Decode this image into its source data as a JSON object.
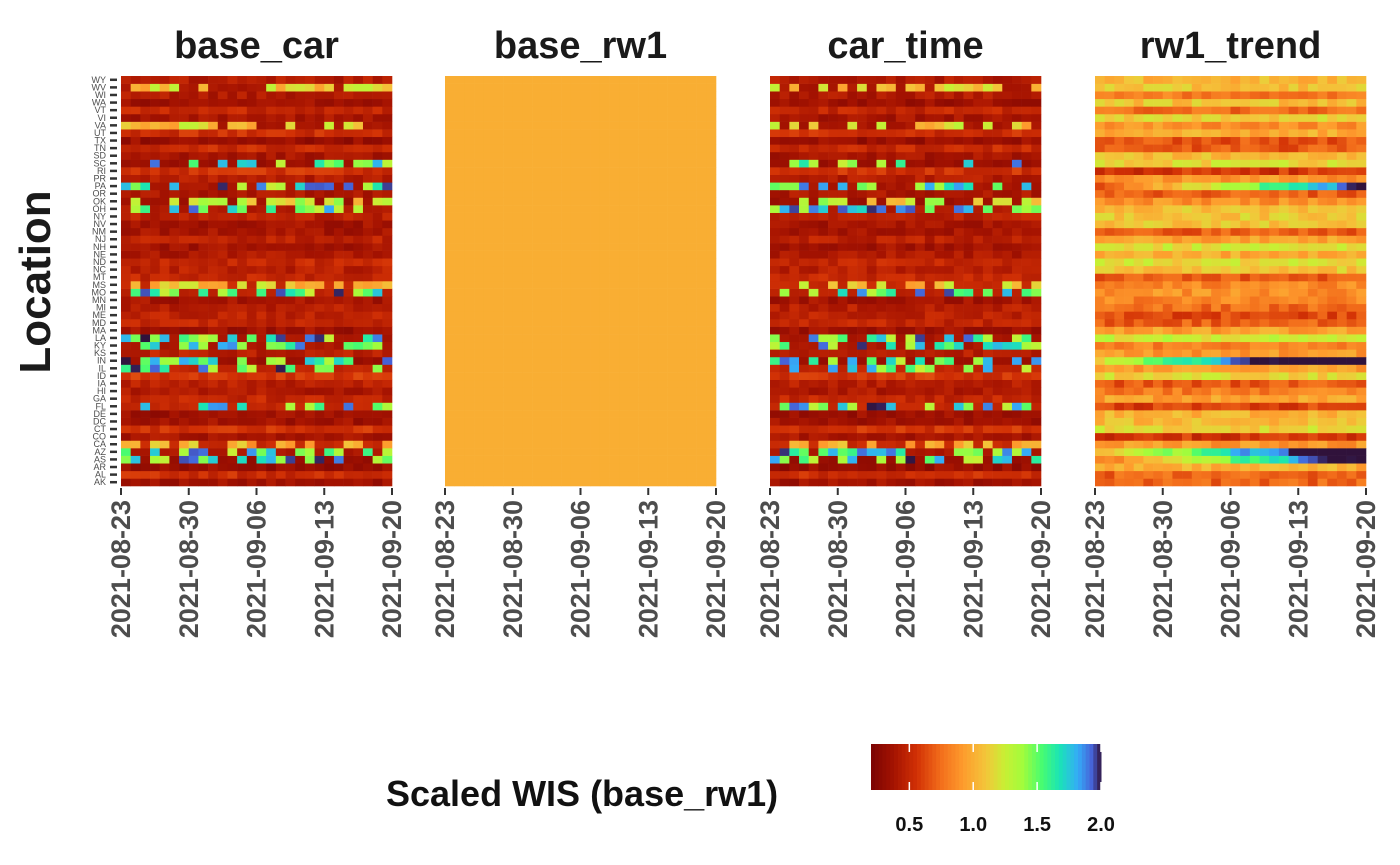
{
  "chart_data": {
    "type": "heatmap",
    "panels": [
      "base_car",
      "base_rw1",
      "car_time",
      "rw1_trend"
    ],
    "ylabel": "Location",
    "y_categories": [
      "AK",
      "AL",
      "AR",
      "AS",
      "AZ",
      "CA",
      "CO",
      "CT",
      "DC",
      "DE",
      "FL",
      "GA",
      "HI",
      "IA",
      "ID",
      "IL",
      "IN",
      "KS",
      "KY",
      "LA",
      "MA",
      "MD",
      "ME",
      "MI",
      "MN",
      "MO",
      "MS",
      "MT",
      "NC",
      "ND",
      "NE",
      "NH",
      "NJ",
      "NM",
      "NV",
      "NY",
      "OH",
      "OK",
      "OR",
      "PA",
      "PR",
      "RI",
      "SC",
      "SD",
      "TN",
      "TX",
      "UT",
      "VA",
      "VI",
      "VT",
      "WA",
      "WI",
      "WV",
      "WY"
    ],
    "x_range": [
      "2021-08-23",
      "2021-09-19"
    ],
    "x_ticks": [
      "2021-08-23",
      "2021-08-30",
      "2021-09-06",
      "2021-09-13",
      "2021-09-20"
    ],
    "fill_label": "Scaled WIS (base_rw1)",
    "fill_range": [
      0.2,
      2.0
    ],
    "fill_ticks": [
      "0.5",
      "1.0",
      "1.5",
      "2.0"
    ],
    "colormap": "turbo-reversed",
    "cell_notes": "base_rw1 is uniformly 1.0 (reference model); other panels show daily scaled WIS per location"
  }
}
